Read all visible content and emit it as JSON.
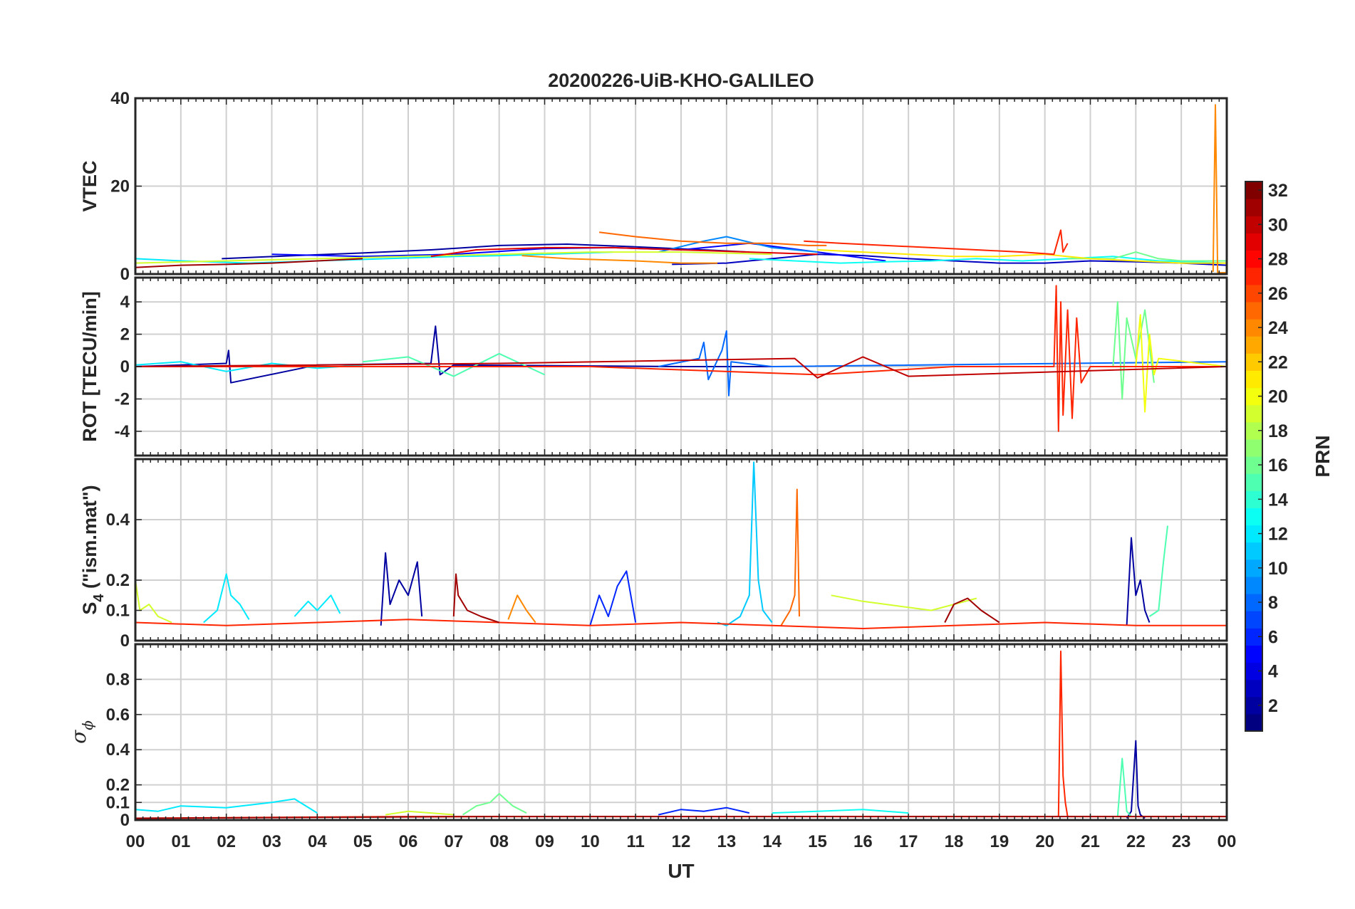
{
  "chart_data": {
    "type": "line",
    "title": "20200226-UiB-KHO-GALILEO",
    "xlabel": "UT",
    "x_range_hours": [
      0,
      24
    ],
    "x_tick_labels": [
      "00",
      "01",
      "02",
      "03",
      "04",
      "05",
      "06",
      "07",
      "08",
      "09",
      "10",
      "11",
      "12",
      "13",
      "14",
      "15",
      "16",
      "17",
      "18",
      "19",
      "20",
      "21",
      "22",
      "23",
      "00"
    ],
    "grid": true,
    "colorbar": {
      "label": "PRN",
      "range": [
        1,
        32
      ],
      "colormap": "jet",
      "tick_labels": [
        "2",
        "4",
        "6",
        "8",
        "10",
        "12",
        "14",
        "16",
        "18",
        "20",
        "22",
        "24",
        "26",
        "28",
        "30",
        "32"
      ],
      "placement": "right"
    },
    "panels": [
      {
        "id": "vtec",
        "ylabel": "VTEC",
        "ylim": [
          0,
          40
        ],
        "y_ticks": [
          0,
          20,
          40
        ],
        "y_tick_labels": [
          "0",
          "20",
          "40"
        ],
        "series": [
          {
            "prn": 2,
            "x": [
              1.9,
              3.5,
              5,
              6.5,
              8,
              9.5,
              11,
              12.5,
              13.5
            ],
            "y": [
              3.5,
              4.2,
              4.8,
              5.5,
              6.5,
              6.8,
              6.2,
              5.5,
              5
            ]
          },
          {
            "prn": 3,
            "x": [
              11.8,
              13,
              14,
              15,
              16,
              17,
              18,
              19,
              20,
              21,
              22,
              23,
              24
            ],
            "y": [
              2.2,
              2.5,
              3.5,
              4.5,
              4.2,
              3.5,
              3,
              2.5,
              2.5,
              3,
              2.8,
              2.5,
              2
            ]
          },
          {
            "prn": 5,
            "x": [
              3,
              5,
              7,
              9,
              10.5,
              12,
              13.5,
              15,
              16.5
            ],
            "y": [
              4.5,
              4,
              4.5,
              5.8,
              6,
              5.5,
              7,
              5,
              3
            ]
          },
          {
            "prn": 9,
            "x": [
              11.5,
              12.5,
              13,
              14,
              15
            ],
            "y": [
              5,
              7.5,
              8.5,
              6,
              5
            ]
          },
          {
            "prn": 12,
            "x": [
              0,
              1,
              2.5,
              4,
              5.5,
              7,
              8,
              9,
              10.5
            ],
            "y": [
              3.5,
              3,
              2.5,
              3,
              3.5,
              4,
              4.2,
              4.5,
              5
            ]
          },
          {
            "prn": 13,
            "x": [
              13.5,
              14.5,
              15.5,
              16.5,
              17.5,
              18.5,
              19.5,
              20.5,
              21.5,
              22.5,
              24
            ],
            "y": [
              3.5,
              3,
              2.5,
              2.8,
              3,
              3.5,
              3,
              3.5,
              4,
              3,
              2.5
            ]
          },
          {
            "prn": 16,
            "x": [
              20.5,
              21.5,
              22,
              22.5,
              23,
              24
            ],
            "y": [
              3.5,
              3.5,
              5,
              3.5,
              3,
              3
            ]
          },
          {
            "prn": 19,
            "x": [
              0,
              2,
              4,
              6,
              8,
              10,
              12,
              14
            ],
            "y": [
              2.5,
              3,
              3.5,
              4,
              4.5,
              5,
              5,
              4.5
            ]
          },
          {
            "prn": 21,
            "x": [
              15,
              16,
              17,
              18,
              19,
              20,
              21,
              22,
              23,
              24
            ],
            "y": [
              5.5,
              5,
              4.5,
              4,
              4,
              4.5,
              3.5,
              3,
              2.5,
              2.5
            ]
          },
          {
            "prn": 24,
            "x": [
              8.5,
              9.5,
              11,
              12,
              12.8
            ],
            "y": [
              4.2,
              3.5,
              3,
              2.5,
              2.5
            ]
          },
          {
            "prn": 24,
            "x": [
              23.7,
              23.75,
              23.8,
              24
            ],
            "y": [
              0.5,
              38.5,
              0.3,
              0.3
            ]
          },
          {
            "prn": 25,
            "x": [
              10.2,
              11,
              12,
              13,
              14,
              14.8,
              15.2
            ],
            "y": [
              9.5,
              8.5,
              7.5,
              7,
              7,
              6.5,
              6.5
            ]
          },
          {
            "prn": 27,
            "x": [
              14.7,
              15.5,
              16.5,
              17.5,
              18.5,
              19.5,
              20.2,
              20.35,
              20.4,
              20.5
            ],
            "y": [
              7.5,
              7,
              6.5,
              6,
              5.5,
              5,
              4.5,
              10,
              5,
              7
            ]
          },
          {
            "prn": 29,
            "x": [
              6.5,
              7.5,
              9,
              10.5,
              12,
              13.5,
              15
            ],
            "y": [
              4,
              5.5,
              6,
              6,
              5.5,
              5,
              4.5
            ]
          },
          {
            "prn": 31,
            "x": [
              0,
              1,
              2,
              3,
              4,
              5
            ],
            "y": [
              1.5,
              2,
              2.2,
              2.5,
              3,
              3.5
            ]
          }
        ]
      },
      {
        "id": "rot",
        "ylabel": "ROT [TECU/min]",
        "ylim": [
          -5.5,
          5.5
        ],
        "y_ticks": [
          -4,
          -2,
          0,
          2,
          4
        ],
        "y_tick_labels": [
          "-4",
          "-2",
          "0",
          "2",
          "4"
        ],
        "series": [
          {
            "prn": 2,
            "x": [
              0,
              2,
              2.05,
              2.1,
              4,
              6.5,
              6.6,
              6.7,
              7,
              12,
              14
            ],
            "y": [
              0,
              0.2,
              1,
              -1,
              0.1,
              0.2,
              2.5,
              -0.5,
              0.1,
              0,
              0
            ]
          },
          {
            "prn": 8,
            "x": [
              11.5,
              12.4,
              12.5,
              12.6,
              12.9,
              13,
              13.05,
              13.1,
              14,
              24
            ],
            "y": [
              0,
              0.5,
              1.5,
              -0.8,
              1,
              2.2,
              -1.8,
              0.3,
              0,
              0.3
            ]
          },
          {
            "prn": 12,
            "x": [
              0,
              1,
              2,
              3,
              4,
              5
            ],
            "y": [
              0.1,
              0.3,
              -0.3,
              0.2,
              -0.1,
              0.1
            ]
          },
          {
            "prn": 15,
            "x": [
              5,
              6,
              7,
              8,
              9
            ],
            "y": [
              0.3,
              0.6,
              -0.6,
              0.8,
              -0.5
            ]
          },
          {
            "prn": 16,
            "x": [
              21.5,
              21.6,
              21.7,
              21.8,
              22,
              22.2,
              22.4
            ],
            "y": [
              0,
              4,
              -2,
              3,
              0.5,
              3.5,
              -1
            ]
          },
          {
            "prn": 20,
            "x": [
              22,
              22.1,
              22.2,
              22.3,
              22.4,
              22.5,
              24
            ],
            "y": [
              0,
              3.2,
              -2.8,
              2,
              -0.5,
              0.5,
              0
            ]
          },
          {
            "prn": 27,
            "x": [
              0,
              10,
              15,
              18,
              20.2,
              20.25,
              20.3,
              20.35,
              20.4,
              20.5,
              20.6,
              20.7,
              20.8,
              21,
              24
            ],
            "y": [
              0,
              0,
              -0.5,
              0,
              0,
              5,
              -4,
              4,
              -3,
              3.5,
              -3.2,
              3,
              -1,
              0,
              0
            ]
          },
          {
            "prn": 30,
            "x": [
              0,
              8,
              14.5,
              15,
              16,
              17,
              24
            ],
            "y": [
              0,
              0.2,
              0.5,
              -0.7,
              0.6,
              -0.6,
              0
            ]
          }
        ]
      },
      {
        "id": "s4",
        "ylabel_main": "S",
        "ylabel_sub": "4",
        "ylabel_rest": " (\"ism.mat\")",
        "ylim": [
          0,
          0.6
        ],
        "y_ticks": [
          0,
          0.1,
          0.2,
          0.4
        ],
        "y_tick_labels": [
          "0",
          "0.1",
          "0.2",
          "0.4"
        ],
        "series": [
          {
            "prn": 2,
            "x": [
              5.4,
              5.5,
              5.6,
              5.8,
              6,
              6.2,
              6.3
            ],
            "y": [
              0.05,
              0.29,
              0.12,
              0.2,
              0.15,
              0.26,
              0.08
            ]
          },
          {
            "prn": 2,
            "x": [
              21.8,
              21.9,
              22,
              22.1,
              22.2,
              22.3
            ],
            "y": [
              0.05,
              0.34,
              0.15,
              0.2,
              0.1,
              0.06
            ]
          },
          {
            "prn": 6,
            "x": [
              10,
              10.2,
              10.4,
              10.6,
              10.8,
              11
            ],
            "y": [
              0.05,
              0.15,
              0.08,
              0.18,
              0.23,
              0.06
            ]
          },
          {
            "prn": 11,
            "x": [
              12.8,
              13,
              13.3,
              13.5,
              13.6,
              13.7,
              13.8,
              14
            ],
            "y": [
              0.06,
              0.05,
              0.08,
              0.15,
              0.59,
              0.2,
              0.1,
              0.06
            ]
          },
          {
            "prn": 12,
            "x": [
              1.5,
              1.8,
              2,
              2.1,
              2.3,
              2.5
            ],
            "y": [
              0.06,
              0.1,
              0.22,
              0.15,
              0.12,
              0.07
            ]
          },
          {
            "prn": 12,
            "x": [
              3.5,
              3.8,
              4,
              4.3,
              4.5
            ],
            "y": [
              0.08,
              0.13,
              0.1,
              0.15,
              0.09
            ]
          },
          {
            "prn": 15,
            "x": [
              22.3,
              22.5,
              22.6,
              22.7
            ],
            "y": [
              0.08,
              0.1,
              0.25,
              0.38
            ]
          },
          {
            "prn": 19,
            "x": [
              0,
              0.1,
              0.3,
              0.5,
              0.8
            ],
            "y": [
              0.2,
              0.1,
              0.12,
              0.08,
              0.06
            ]
          },
          {
            "prn": 19,
            "x": [
              15.3,
              16,
              16.5,
              17,
              17.5,
              18,
              18.5
            ],
            "y": [
              0.15,
              0.13,
              0.12,
              0.11,
              0.1,
              0.12,
              0.14
            ]
          },
          {
            "prn": 24,
            "x": [
              8.2,
              8.4,
              8.6,
              8.8
            ],
            "y": [
              0.07,
              0.15,
              0.1,
              0.06
            ]
          },
          {
            "prn": 25,
            "x": [
              14.2,
              14.4,
              14.5,
              14.55,
              14.6
            ],
            "y": [
              0.05,
              0.1,
              0.15,
              0.5,
              0.08
            ]
          },
          {
            "prn": 27,
            "x": [
              0,
              2,
              4,
              6,
              8,
              10,
              12,
              14,
              16,
              18,
              20,
              22,
              24
            ],
            "y": [
              0.06,
              0.05,
              0.06,
              0.07,
              0.06,
              0.05,
              0.06,
              0.05,
              0.04,
              0.05,
              0.06,
              0.05,
              0.05
            ]
          },
          {
            "prn": 31,
            "x": [
              7,
              7.05,
              7.1,
              7.3,
              7.6,
              8
            ],
            "y": [
              0.08,
              0.22,
              0.15,
              0.1,
              0.08,
              0.06
            ]
          },
          {
            "prn": 31,
            "x": [
              17.8,
              18,
              18.3,
              18.6,
              19
            ],
            "y": [
              0.06,
              0.12,
              0.14,
              0.1,
              0.06
            ]
          }
        ]
      },
      {
        "id": "sigma_phi",
        "ylabel_main": "σ",
        "ylabel_sub": "ϕ",
        "ylim": [
          0,
          1.0
        ],
        "y_ticks": [
          0,
          0.1,
          0.2,
          0.4,
          0.6,
          0.8
        ],
        "y_tick_labels": [
          "0",
          "0.1",
          "0.2",
          "0.4",
          "0.6",
          "0.8"
        ],
        "series": [
          {
            "prn": 2,
            "x": [
              21.8,
              21.9,
              22,
              22.05,
              22.1,
              22.2
            ],
            "y": [
              0.01,
              0.05,
              0.45,
              0.08,
              0.03,
              0.01
            ]
          },
          {
            "prn": 6,
            "x": [
              11.5,
              12,
              12.5,
              13,
              13.5
            ],
            "y": [
              0.03,
              0.06,
              0.05,
              0.07,
              0.04
            ]
          },
          {
            "prn": 12,
            "x": [
              0,
              0.5,
              1,
              2,
              3,
              3.5,
              4
            ],
            "y": [
              0.06,
              0.05,
              0.08,
              0.07,
              0.1,
              0.12,
              0.04
            ]
          },
          {
            "prn": 13,
            "x": [
              14,
              15,
              16,
              17
            ],
            "y": [
              0.04,
              0.05,
              0.06,
              0.04
            ]
          },
          {
            "prn": 15,
            "x": [
              21.6,
              21.7,
              21.8,
              21.9
            ],
            "y": [
              0.02,
              0.35,
              0.05,
              0.02
            ]
          },
          {
            "prn": 16,
            "x": [
              7.2,
              7.5,
              7.8,
              8,
              8.3,
              8.6
            ],
            "y": [
              0.03,
              0.08,
              0.1,
              0.15,
              0.08,
              0.04
            ]
          },
          {
            "prn": 19,
            "x": [
              5.5,
              6,
              6.5,
              7
            ],
            "y": [
              0.03,
              0.05,
              0.04,
              0.03
            ]
          },
          {
            "prn": 27,
            "x": [
              0,
              6,
              12,
              20.3,
              20.35,
              20.4,
              20.45,
              20.5,
              24
            ],
            "y": [
              0.01,
              0.02,
              0.02,
              0.02,
              0.96,
              0.25,
              0.1,
              0.02,
              0.02
            ]
          },
          {
            "prn": 31,
            "x": [
              0,
              8,
              16,
              24
            ],
            "y": [
              0.01,
              0.02,
              0.02,
              0.02
            ]
          }
        ]
      }
    ]
  }
}
